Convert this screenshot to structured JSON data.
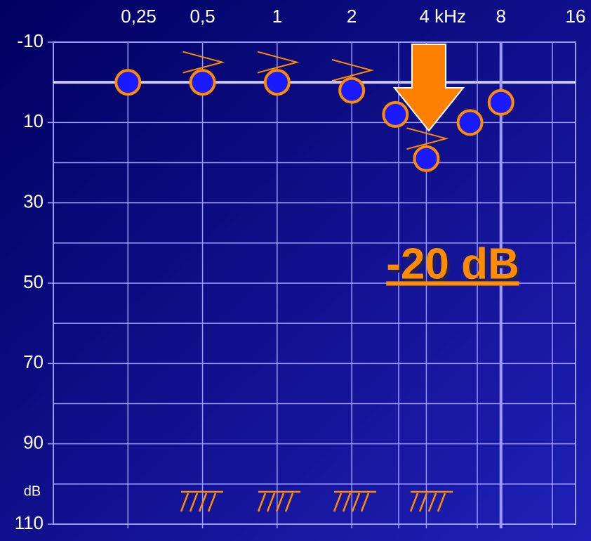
{
  "chart_data": {
    "type": "scatter",
    "xscale": "log",
    "xlim": [
      0.125,
      16
    ],
    "xticks": [
      {
        "value": 0.25,
        "label": "0,25"
      },
      {
        "value": 0.5,
        "label": "0,5"
      },
      1,
      2,
      {
        "value": 4,
        "label": "4 kHz"
      },
      8,
      16
    ],
    "ylim": [
      -10,
      110
    ],
    "yticks": [
      -10,
      10,
      30,
      50,
      70,
      90,
      110
    ],
    "y_label": "dB",
    "annotation": "-20 dB",
    "grid": true,
    "series": [
      {
        "marker": "circle",
        "color": "#ff8c00",
        "fill": "#1a1aff",
        "x": [
          0.25,
          0.5,
          1,
          2,
          3,
          4,
          6,
          8
        ],
        "values": [
          0,
          0,
          0,
          2,
          8,
          19,
          10,
          5
        ]
      },
      {
        "marker": "bone",
        "color": "#ff8c00",
        "x": [
          0.5,
          1,
          2,
          4
        ],
        "values": [
          -5,
          -5,
          -3,
          14
        ]
      }
    ]
  }
}
